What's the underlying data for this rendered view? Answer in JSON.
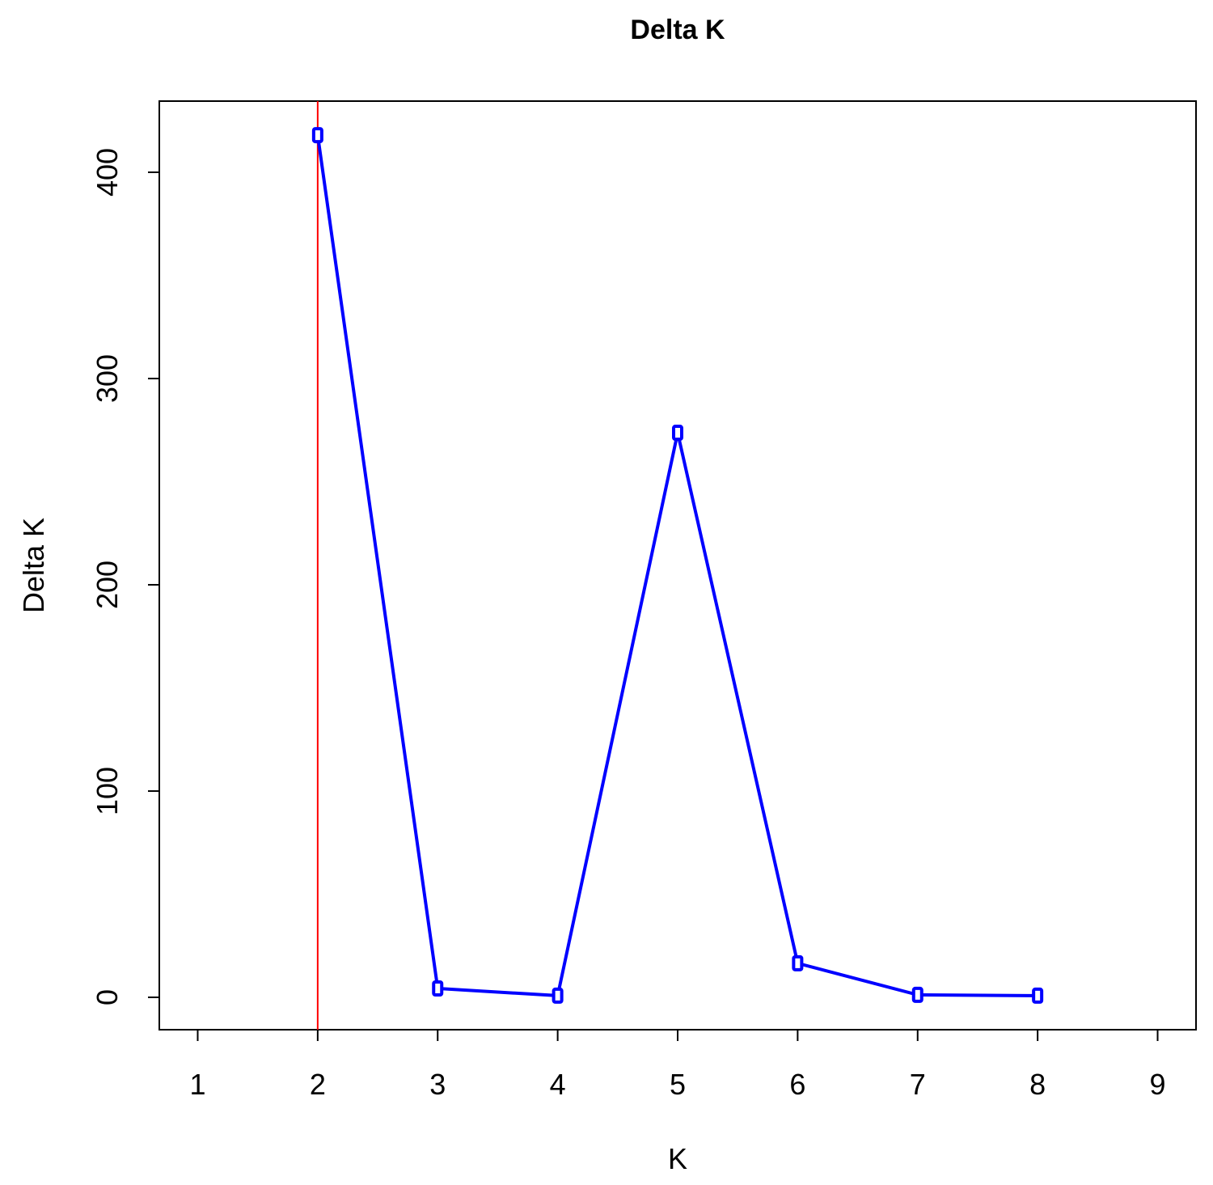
{
  "chart_data": {
    "type": "line",
    "title": "Delta K",
    "x_label": "K",
    "y_label": "Delta K",
    "x": [
      2,
      3,
      4,
      5,
      6,
      7,
      8
    ],
    "series": [
      {
        "name": "Delta K",
        "color": "#0000ff",
        "values": [
          418,
          4.3,
          0.8,
          273.7,
          16.5,
          1.2,
          0.8
        ]
      }
    ],
    "xlim": [
      0.68,
      9.32
    ],
    "xticks": [
      1,
      2,
      3,
      4,
      5,
      6,
      7,
      8,
      9
    ],
    "ylim": [
      -15.7,
      434.5
    ],
    "yticks": [
      0,
      100,
      200,
      300,
      400
    ],
    "vline": {
      "x": 2,
      "color": "#ff0000"
    }
  }
}
